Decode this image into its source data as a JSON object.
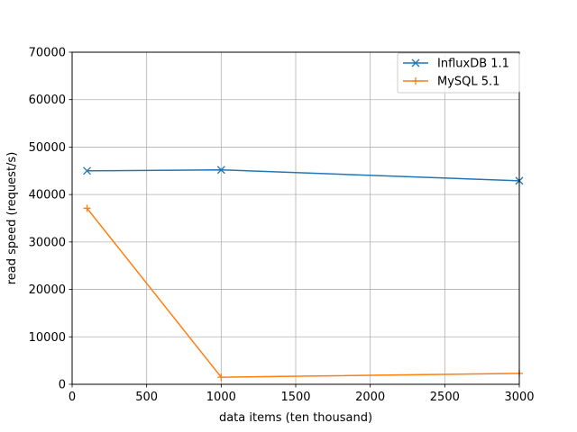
{
  "chart_data": {
    "type": "line",
    "xlabel": "data items (ten thousand)",
    "ylabel": "read speed (request/s)",
    "xlim": [
      0,
      3000
    ],
    "ylim": [
      0,
      70000
    ],
    "xticks": [
      0,
      500,
      1000,
      1500,
      2000,
      2500,
      3000
    ],
    "xtick_labels": [
      "0",
      "500",
      "1000",
      "1500",
      "2000",
      "2500",
      "3000"
    ],
    "yticks": [
      0,
      10000,
      20000,
      30000,
      40000,
      50000,
      60000,
      70000
    ],
    "ytick_labels": [
      "0",
      "10000",
      "20000",
      "30000",
      "40000",
      "50000",
      "60000",
      "70000"
    ],
    "grid": true,
    "legend_position": "top-right",
    "series": [
      {
        "name": "InfluxDB 1.1",
        "color": "#1f77b4",
        "marker": "x",
        "x": [
          100,
          1000,
          3000
        ],
        "y": [
          45000,
          45200,
          42900
        ]
      },
      {
        "name": "MySQL 5.1",
        "color": "#ff7f0e",
        "marker": "+",
        "x": [
          100,
          1000,
          3000
        ],
        "y": [
          37100,
          1500,
          2300
        ]
      }
    ]
  }
}
